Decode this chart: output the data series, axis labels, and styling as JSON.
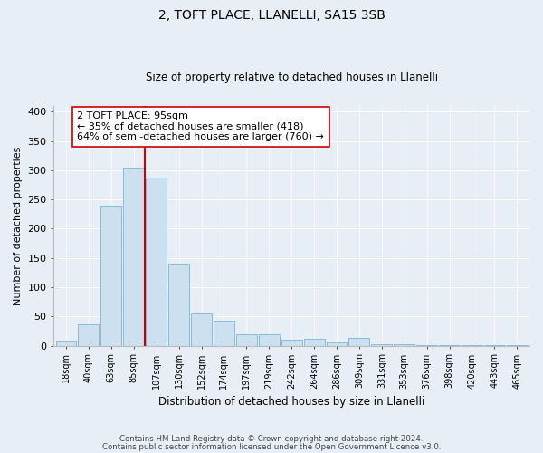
{
  "title": "2, TOFT PLACE, LLANELLI, SA15 3SB",
  "subtitle": "Size of property relative to detached houses in Llanelli",
  "xlabel": "Distribution of detached houses by size in Llanelli",
  "ylabel": "Number of detached properties",
  "bar_labels": [
    "18sqm",
    "40sqm",
    "63sqm",
    "85sqm",
    "107sqm",
    "130sqm",
    "152sqm",
    "174sqm",
    "197sqm",
    "219sqm",
    "242sqm",
    "264sqm",
    "286sqm",
    "309sqm",
    "331sqm",
    "353sqm",
    "376sqm",
    "398sqm",
    "420sqm",
    "443sqm",
    "465sqm"
  ],
  "bar_values": [
    8,
    37,
    240,
    305,
    288,
    141,
    55,
    43,
    20,
    20,
    10,
    12,
    5,
    13,
    2,
    3,
    1,
    1,
    1,
    1,
    1
  ],
  "bar_color": "#cce0f0",
  "bar_edge_color": "#88bbdd",
  "vline_color": "#cc0000",
  "annotation_title": "2 TOFT PLACE: 95sqm",
  "annotation_line1": "← 35% of detached houses are smaller (418)",
  "annotation_line2": "64% of semi-detached houses are larger (760) →",
  "annotation_box_color": "#ffffff",
  "annotation_box_edge": "#cc0000",
  "ylim": [
    0,
    410
  ],
  "yticks": [
    0,
    50,
    100,
    150,
    200,
    250,
    300,
    350,
    400
  ],
  "background_color": "#e8eef5",
  "grid_color": "#ffffff",
  "footer1": "Contains HM Land Registry data © Crown copyright and database right 2024.",
  "footer2": "Contains public sector information licensed under the Open Government Licence v3.0."
}
